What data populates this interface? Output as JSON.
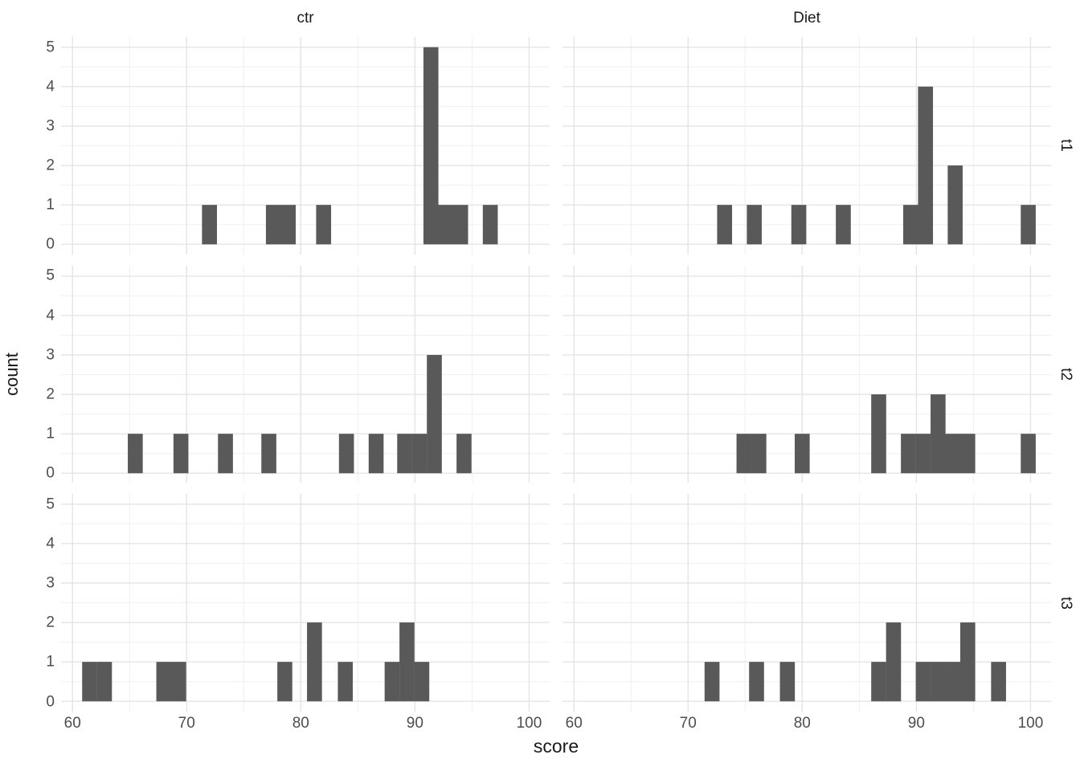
{
  "chart_data": {
    "type": "bar",
    "subtype": "faceted-histogram",
    "title": "",
    "xlabel": "score",
    "ylabel": "count",
    "facet_cols": [
      "ctr",
      "Diet"
    ],
    "facet_rows": [
      "t1",
      "t2",
      "t3"
    ],
    "x_ticks": [
      60,
      70,
      80,
      90,
      100
    ],
    "y_ticks": [
      0,
      1,
      2,
      3,
      4,
      5
    ],
    "x_minor_ticks": [
      65,
      75,
      85,
      95
    ],
    "y_minor_ticks": [
      0.5,
      1.5,
      2.5,
      3.5,
      4.5
    ],
    "xlim": [
      59,
      101.8
    ],
    "ylim": [
      -0.26,
      5.26
    ],
    "binwidth": 1.31,
    "bar_color": "#595959",
    "grid_major_color": "#e4e4e4",
    "grid_minor_color": "#f0f0f0",
    "axis_text_color": "#4d4d4d",
    "title_text_color": "#1a1a1a",
    "background_color": "#ffffff",
    "legend": "none",
    "panels": [
      {
        "row": "t1",
        "col": "ctr",
        "bars": [
          [
            72.0,
            1
          ],
          [
            77.6,
            1
          ],
          [
            78.9,
            1
          ],
          [
            82.0,
            1
          ],
          [
            91.4,
            5
          ],
          [
            92.7,
            1
          ],
          [
            94.0,
            1
          ],
          [
            96.6,
            1
          ]
        ]
      },
      {
        "row": "t1",
        "col": "Diet",
        "bars": [
          [
            73.2,
            1
          ],
          [
            75.8,
            1
          ],
          [
            79.7,
            1
          ],
          [
            83.6,
            1
          ],
          [
            89.5,
            1
          ],
          [
            90.8,
            4
          ],
          [
            93.4,
            2
          ],
          [
            99.8,
            1
          ]
        ]
      },
      {
        "row": "t2",
        "col": "ctr",
        "bars": [
          [
            65.5,
            1
          ],
          [
            69.5,
            1
          ],
          [
            73.4,
            1
          ],
          [
            77.2,
            1
          ],
          [
            84.0,
            1
          ],
          [
            86.6,
            1
          ],
          [
            89.1,
            1
          ],
          [
            90.4,
            1
          ],
          [
            91.7,
            3
          ],
          [
            94.3,
            1
          ]
        ]
      },
      {
        "row": "t2",
        "col": "Diet",
        "bars": [
          [
            74.9,
            1
          ],
          [
            76.2,
            1
          ],
          [
            80.0,
            1
          ],
          [
            86.7,
            2
          ],
          [
            89.3,
            1
          ],
          [
            90.6,
            1
          ],
          [
            91.9,
            2
          ],
          [
            93.2,
            1
          ],
          [
            94.5,
            1
          ],
          [
            99.8,
            1
          ]
        ]
      },
      {
        "row": "t3",
        "col": "ctr",
        "bars": [
          [
            61.5,
            1
          ],
          [
            62.8,
            1
          ],
          [
            68.0,
            1
          ],
          [
            69.3,
            1
          ],
          [
            78.6,
            1
          ],
          [
            81.2,
            2
          ],
          [
            83.9,
            1
          ],
          [
            88.0,
            1
          ],
          [
            89.3,
            2
          ],
          [
            90.6,
            1
          ]
        ]
      },
      {
        "row": "t3",
        "col": "Diet",
        "bars": [
          [
            72.1,
            1
          ],
          [
            76.0,
            1
          ],
          [
            78.7,
            1
          ],
          [
            86.7,
            1
          ],
          [
            88.0,
            2
          ],
          [
            90.6,
            1
          ],
          [
            91.9,
            1
          ],
          [
            93.2,
            1
          ],
          [
            94.5,
            2
          ],
          [
            97.2,
            1
          ]
        ]
      }
    ]
  }
}
